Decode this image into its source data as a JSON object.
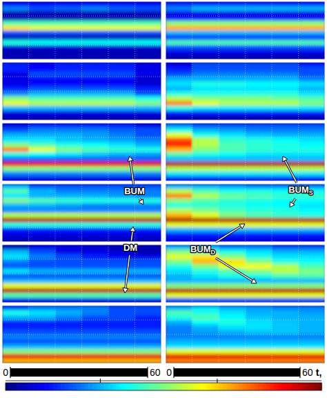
{
  "chart_data": {
    "type": "heatmap",
    "xlabel": "t,",
    "xlim": [
      0,
      60
    ],
    "xticks": [
      0,
      60
    ],
    "grid": true,
    "colorbar": {
      "range": [
        0,
        1
      ],
      "ticks": [
        0.3,
        0.67
      ]
    },
    "annotations": [
      {
        "text": "BUM"
      },
      {
        "text": "DM"
      },
      {
        "text": "BUM",
        "subscript": "S"
      },
      {
        "text": "BUM",
        "subscript": "D"
      }
    ],
    "panels": [
      {
        "cells": [
          [
            0.12,
            0.12,
            0.12,
            0.12,
            0.12,
            0.12
          ],
          [
            0.25,
            0.2,
            0.22,
            0.25,
            0.22,
            0.2
          ],
          [
            0.05,
            0.05,
            0.05,
            0.05,
            0.05,
            0.05
          ],
          [
            0.05,
            0.05,
            0.05,
            0.05,
            0.05,
            0.05
          ],
          [
            0.45,
            0.45,
            0.45,
            0.45,
            0.45,
            0.45
          ],
          [
            0.65,
            0.6,
            0.6,
            0.6,
            0.6,
            0.6
          ],
          [
            0.2,
            0.2,
            0.2,
            0.2,
            0.2,
            0.2
          ],
          [
            0.05,
            0.05,
            0.05,
            0.05,
            0.05,
            0.05
          ],
          [
            0.4,
            0.38,
            0.38,
            0.38,
            0.38,
            0.38
          ],
          [
            0.08,
            0.08,
            0.08,
            0.08,
            0.08,
            0.08
          ],
          [
            0.05,
            0.05,
            0.05,
            0.05,
            0.05,
            0.05
          ],
          [
            0.05,
            0.05,
            0.05,
            0.05,
            0.05,
            0.05
          ]
        ]
      },
      {
        "cells": [
          [
            0.15,
            0.12,
            0.15,
            0.15,
            0.15,
            0.1
          ],
          [
            0.15,
            0.12,
            0.15,
            0.15,
            0.15,
            0.1
          ],
          [
            0.1,
            0.2,
            0.2,
            0.2,
            0.2,
            0.1
          ],
          [
            0.1,
            0.12,
            0.12,
            0.12,
            0.12,
            0.08
          ],
          [
            0.1,
            0.12,
            0.12,
            0.12,
            0.12,
            0.08
          ],
          [
            0.15,
            0.2,
            0.2,
            0.2,
            0.2,
            0.15
          ],
          [
            0.25,
            0.3,
            0.3,
            0.3,
            0.3,
            0.2
          ],
          [
            0.5,
            0.45,
            0.45,
            0.45,
            0.45,
            0.4
          ],
          [
            0.6,
            0.55,
            0.55,
            0.55,
            0.55,
            0.5
          ],
          [
            0.3,
            0.3,
            0.3,
            0.3,
            0.3,
            0.3
          ],
          [
            0.1,
            0.1,
            0.1,
            0.1,
            0.1,
            0.1
          ],
          [
            0.05,
            0.05,
            0.05,
            0.05,
            0.05,
            0.05
          ]
        ]
      },
      {
        "cells": [
          [
            0.1,
            0.15,
            0.15,
            0.15,
            0.15,
            0.1
          ],
          [
            0.2,
            0.25,
            0.25,
            0.25,
            0.22,
            0.2
          ],
          [
            0.3,
            0.3,
            0.3,
            0.28,
            0.25,
            0.2
          ],
          [
            0.35,
            0.35,
            0.32,
            0.3,
            0.28,
            0.25
          ],
          [
            0.5,
            0.45,
            0.4,
            0.38,
            0.35,
            0.3
          ],
          [
            0.75,
            0.6,
            0.5,
            0.45,
            0.42,
            0.4
          ],
          [
            0.4,
            0.38,
            0.35,
            0.32,
            0.3,
            0.28
          ],
          [
            0.2,
            0.2,
            0.2,
            0.2,
            0.2,
            0.2
          ],
          [
            0.9,
            0.9,
            0.9,
            0.9,
            0.9,
            0.9
          ],
          [
            0.5,
            0.5,
            0.5,
            0.5,
            0.5,
            0.5
          ],
          [
            0.25,
            0.25,
            0.25,
            0.25,
            0.25,
            0.25
          ],
          [
            0.1,
            0.1,
            0.1,
            0.1,
            0.1,
            0.1
          ]
        ]
      },
      {
        "cells": [
          [
            0.3,
            0.2,
            0.2,
            0.2,
            0.2,
            0.2
          ],
          [
            0.45,
            0.3,
            0.25,
            0.25,
            0.25,
            0.25
          ],
          [
            0.35,
            0.3,
            0.3,
            0.3,
            0.28,
            0.25
          ],
          [
            0.5,
            0.45,
            0.42,
            0.4,
            0.4,
            0.4
          ],
          [
            0.3,
            0.3,
            0.28,
            0.25,
            0.25,
            0.25
          ],
          [
            0.25,
            0.25,
            0.25,
            0.25,
            0.25,
            0.25
          ],
          [
            0.55,
            0.55,
            0.55,
            0.55,
            0.55,
            0.55
          ],
          [
            0.95,
            0.95,
            0.95,
            0.95,
            0.95,
            0.95
          ],
          [
            0.4,
            0.4,
            0.4,
            0.4,
            0.4,
            0.4
          ],
          [
            0.15,
            0.15,
            0.15,
            0.15,
            0.15,
            0.15
          ],
          [
            0.1,
            0.1,
            0.1,
            0.1,
            0.1,
            0.1
          ],
          [
            0.05,
            0.05,
            0.05,
            0.05,
            0.05,
            0.05
          ]
        ]
      },
      {
        "cells": [
          [
            0.05,
            0.1,
            0.1,
            0.08,
            0.05,
            0.05
          ],
          [
            0.3,
            0.2,
            0.1,
            0.1,
            0.08,
            0.05
          ],
          [
            0.35,
            0.25,
            0.2,
            0.15,
            0.12,
            0.1
          ],
          [
            0.25,
            0.2,
            0.2,
            0.2,
            0.2,
            0.2
          ],
          [
            0.2,
            0.2,
            0.2,
            0.2,
            0.2,
            0.2
          ],
          [
            0.35,
            0.3,
            0.3,
            0.3,
            0.3,
            0.3
          ],
          [
            0.2,
            0.2,
            0.2,
            0.2,
            0.2,
            0.2
          ],
          [
            0.3,
            0.3,
            0.3,
            0.3,
            0.3,
            0.3
          ],
          [
            0.6,
            0.6,
            0.6,
            0.6,
            0.6,
            0.6
          ],
          [
            0.95,
            0.95,
            0.95,
            0.95,
            0.95,
            0.95
          ],
          [
            0.45,
            0.45,
            0.45,
            0.45,
            0.45,
            0.45
          ],
          [
            0.1,
            0.1,
            0.1,
            0.1,
            0.1,
            0.1
          ]
        ]
      },
      {
        "cells": [
          [
            0.2,
            0.25,
            0.25,
            0.25,
            0.2,
            0.2
          ],
          [
            0.4,
            0.35,
            0.3,
            0.25,
            0.2,
            0.2
          ],
          [
            0.3,
            0.3,
            0.25,
            0.2,
            0.2,
            0.15
          ],
          [
            0.15,
            0.15,
            0.15,
            0.15,
            0.15,
            0.15
          ],
          [
            0.15,
            0.15,
            0.15,
            0.15,
            0.15,
            0.15
          ],
          [
            0.2,
            0.2,
            0.2,
            0.2,
            0.2,
            0.2
          ],
          [
            0.25,
            0.25,
            0.25,
            0.25,
            0.25,
            0.25
          ],
          [
            0.2,
            0.2,
            0.2,
            0.2,
            0.2,
            0.2
          ],
          [
            0.3,
            0.3,
            0.3,
            0.3,
            0.3,
            0.3
          ],
          [
            0.5,
            0.5,
            0.5,
            0.5,
            0.5,
            0.5
          ],
          [
            0.9,
            0.9,
            0.9,
            0.9,
            0.9,
            0.9
          ],
          [
            0.7,
            0.7,
            0.7,
            0.7,
            0.7,
            0.7
          ]
        ]
      },
      {
        "cells": [
          [
            0.15,
            0.15,
            0.15,
            0.15,
            0.15,
            0.15
          ],
          [
            0.25,
            0.3,
            0.3,
            0.3,
            0.3,
            0.3
          ],
          [
            0.1,
            0.1,
            0.1,
            0.1,
            0.1,
            0.1
          ],
          [
            0.12,
            0.12,
            0.12,
            0.12,
            0.12,
            0.12
          ],
          [
            0.5,
            0.5,
            0.5,
            0.5,
            0.5,
            0.5
          ],
          [
            0.7,
            0.7,
            0.7,
            0.7,
            0.7,
            0.7
          ],
          [
            0.3,
            0.3,
            0.3,
            0.3,
            0.3,
            0.3
          ],
          [
            0.15,
            0.15,
            0.15,
            0.15,
            0.15,
            0.15
          ],
          [
            0.45,
            0.45,
            0.45,
            0.45,
            0.45,
            0.45
          ],
          [
            0.2,
            0.2,
            0.2,
            0.2,
            0.2,
            0.2
          ],
          [
            0.1,
            0.1,
            0.1,
            0.1,
            0.1,
            0.1
          ],
          [
            0.05,
            0.05,
            0.05,
            0.05,
            0.05,
            0.05
          ]
        ]
      },
      {
        "cells": [
          [
            0.1,
            0.2,
            0.2,
            0.2,
            0.2,
            0.15
          ],
          [
            0.15,
            0.2,
            0.2,
            0.2,
            0.2,
            0.2
          ],
          [
            0.2,
            0.25,
            0.25,
            0.25,
            0.25,
            0.2
          ],
          [
            0.3,
            0.3,
            0.3,
            0.3,
            0.3,
            0.25
          ],
          [
            0.35,
            0.4,
            0.4,
            0.38,
            0.38,
            0.35
          ],
          [
            0.3,
            0.35,
            0.35,
            0.35,
            0.35,
            0.3
          ],
          [
            0.4,
            0.4,
            0.4,
            0.4,
            0.4,
            0.35
          ],
          [
            0.55,
            0.5,
            0.5,
            0.5,
            0.48,
            0.45
          ],
          [
            0.75,
            0.6,
            0.55,
            0.55,
            0.55,
            0.5
          ],
          [
            0.4,
            0.35,
            0.35,
            0.35,
            0.35,
            0.35
          ],
          [
            0.15,
            0.15,
            0.15,
            0.15,
            0.15,
            0.15
          ],
          [
            0.05,
            0.05,
            0.05,
            0.05,
            0.05,
            0.05
          ]
        ]
      },
      {
        "cells": [
          [
            0.25,
            0.2,
            0.2,
            0.2,
            0.2,
            0.2
          ],
          [
            0.4,
            0.3,
            0.28,
            0.25,
            0.25,
            0.25
          ],
          [
            0.6,
            0.4,
            0.35,
            0.32,
            0.3,
            0.3
          ],
          [
            0.8,
            0.55,
            0.42,
            0.4,
            0.38,
            0.35
          ],
          [
            0.85,
            0.55,
            0.45,
            0.42,
            0.4,
            0.38
          ],
          [
            0.7,
            0.5,
            0.45,
            0.42,
            0.4,
            0.4
          ],
          [
            0.45,
            0.4,
            0.38,
            0.35,
            0.35,
            0.35
          ],
          [
            0.3,
            0.3,
            0.3,
            0.3,
            0.3,
            0.3
          ],
          [
            0.95,
            0.95,
            0.95,
            0.95,
            0.95,
            0.95
          ],
          [
            0.55,
            0.55,
            0.55,
            0.55,
            0.55,
            0.55
          ],
          [
            0.35,
            0.35,
            0.35,
            0.35,
            0.35,
            0.35
          ],
          [
            0.15,
            0.15,
            0.15,
            0.15,
            0.15,
            0.15
          ]
        ]
      },
      {
        "cells": [
          [
            0.3,
            0.3,
            0.28,
            0.25,
            0.25,
            0.25
          ],
          [
            0.55,
            0.45,
            0.4,
            0.4,
            0.38,
            0.38
          ],
          [
            0.75,
            0.55,
            0.48,
            0.45,
            0.42,
            0.42
          ],
          [
            0.5,
            0.45,
            0.42,
            0.4,
            0.38,
            0.38
          ],
          [
            0.4,
            0.42,
            0.4,
            0.38,
            0.38,
            0.35
          ],
          [
            0.55,
            0.5,
            0.45,
            0.42,
            0.4,
            0.38
          ],
          [
            0.7,
            0.6,
            0.5,
            0.45,
            0.42,
            0.4
          ],
          [
            0.95,
            0.95,
            0.95,
            0.95,
            0.95,
            0.95
          ],
          [
            0.6,
            0.6,
            0.6,
            0.6,
            0.6,
            0.6
          ],
          [
            0.3,
            0.3,
            0.3,
            0.3,
            0.3,
            0.3
          ],
          [
            0.15,
            0.15,
            0.15,
            0.15,
            0.15,
            0.15
          ],
          [
            0.1,
            0.1,
            0.1,
            0.1,
            0.1,
            0.1
          ]
        ]
      },
      {
        "cells": [
          [
            0.3,
            0.3,
            0.25,
            0.25,
            0.2,
            0.2
          ],
          [
            0.5,
            0.45,
            0.4,
            0.35,
            0.3,
            0.3
          ],
          [
            0.6,
            0.65,
            0.5,
            0.4,
            0.35,
            0.35
          ],
          [
            0.5,
            0.7,
            0.65,
            0.5,
            0.4,
            0.38
          ],
          [
            0.4,
            0.5,
            0.6,
            0.62,
            0.55,
            0.45
          ],
          [
            0.35,
            0.4,
            0.45,
            0.5,
            0.55,
            0.5
          ],
          [
            0.3,
            0.35,
            0.4,
            0.4,
            0.45,
            0.45
          ],
          [
            0.3,
            0.3,
            0.3,
            0.3,
            0.3,
            0.3
          ],
          [
            0.5,
            0.5,
            0.5,
            0.5,
            0.5,
            0.5
          ],
          [
            0.95,
            0.95,
            0.95,
            0.95,
            0.95,
            0.95
          ],
          [
            0.6,
            0.6,
            0.6,
            0.6,
            0.6,
            0.6
          ],
          [
            0.2,
            0.2,
            0.2,
            0.2,
            0.2,
            0.2
          ]
        ]
      },
      {
        "cells": [
          [
            0.3,
            0.35,
            0.3,
            0.28,
            0.25,
            0.25
          ],
          [
            0.45,
            0.4,
            0.35,
            0.3,
            0.3,
            0.28
          ],
          [
            0.4,
            0.45,
            0.38,
            0.32,
            0.3,
            0.3
          ],
          [
            0.3,
            0.38,
            0.4,
            0.35,
            0.32,
            0.3
          ],
          [
            0.25,
            0.3,
            0.35,
            0.35,
            0.32,
            0.3
          ],
          [
            0.25,
            0.28,
            0.3,
            0.32,
            0.32,
            0.3
          ],
          [
            0.25,
            0.25,
            0.25,
            0.25,
            0.25,
            0.25
          ],
          [
            0.3,
            0.3,
            0.3,
            0.3,
            0.3,
            0.3
          ],
          [
            0.35,
            0.35,
            0.35,
            0.35,
            0.35,
            0.35
          ],
          [
            0.6,
            0.6,
            0.6,
            0.6,
            0.6,
            0.6
          ],
          [
            0.9,
            0.9,
            0.9,
            0.9,
            0.9,
            0.9
          ],
          [
            0.75,
            0.75,
            0.75,
            0.75,
            0.75,
            0.75
          ]
        ]
      }
    ]
  }
}
